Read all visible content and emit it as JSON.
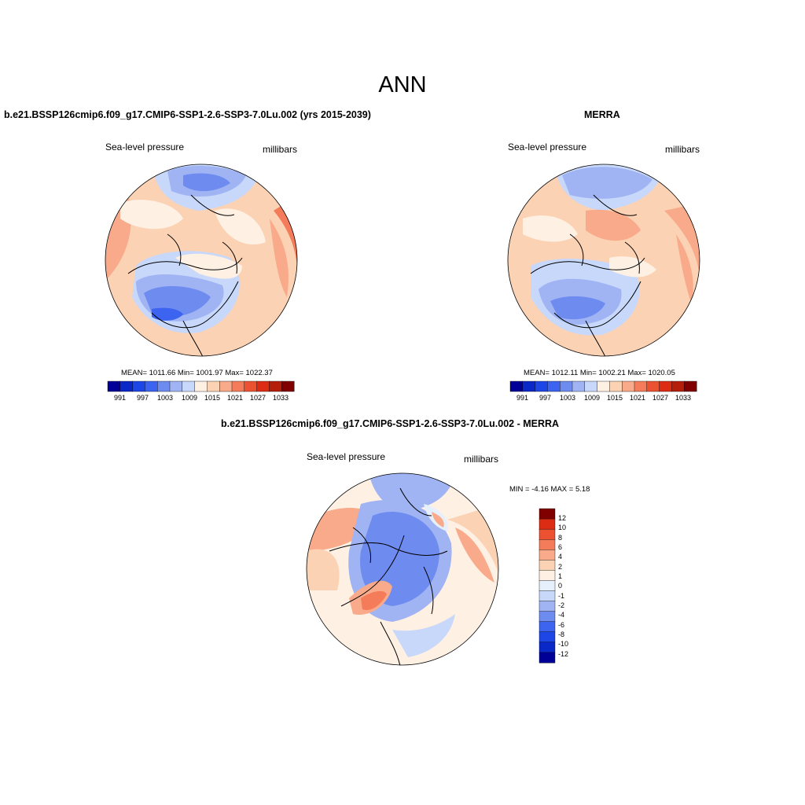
{
  "page_title": "ANN",
  "colors": {
    "abs_scale": [
      "#000096",
      "#0a28c8",
      "#1e46e6",
      "#3c64f0",
      "#6e8cf0",
      "#a0b4f4",
      "#c8d8fa",
      "#fff0e4",
      "#fcd2b4",
      "#f8aa8a",
      "#f47c5a",
      "#ec5232",
      "#dc2d14",
      "#b41e0a",
      "#800000"
    ],
    "diff_scale": [
      "#000096",
      "#0a28c8",
      "#1e46e6",
      "#3c64f0",
      "#6e8cf0",
      "#a0b4f4",
      "#c8d8fa",
      "#e6f0fc",
      "#fff0e4",
      "#fcd2b4",
      "#f8aa8a",
      "#f47c5a",
      "#ec5232",
      "#dc2d14",
      "#800000"
    ]
  },
  "panels": {
    "model": {
      "case_title": "b.e21.BSSP126cmip6.f09_g17.CMIP6-SSP1-2.6-SSP3-7.0Lu.002 (yrs 2015-2039)",
      "variable": "Sea-level pressure",
      "units": "millibars",
      "stats": "MEAN= 1011.66  Min= 1001.97  Max= 1022.37",
      "colorbar_ticks": [
        "991",
        "997",
        "1003",
        "1009",
        "1015",
        "1021",
        "1027",
        "1033"
      ]
    },
    "obs": {
      "case_title": "MERRA",
      "variable": "Sea-level pressure",
      "units": "millibars",
      "stats": "MEAN= 1012.11  Min= 1002.21  Max= 1020.05",
      "colorbar_ticks": [
        "991",
        "997",
        "1003",
        "1009",
        "1015",
        "1021",
        "1027",
        "1033"
      ]
    },
    "diff": {
      "case_title": "b.e21.BSSP126cmip6.f09_g17.CMIP6-SSP1-2.6-SSP3-7.0Lu.002 - MERRA",
      "variable": "Sea-level pressure",
      "units": "millibars",
      "stats": "MIN =  -4.16 MAX =   5.18",
      "colorbar_ticks": [
        "12",
        "10",
        "8",
        "6",
        "4",
        "2",
        "1",
        "0",
        "-1",
        "-2",
        "-4",
        "-6",
        "-8",
        "-10",
        "-12"
      ]
    }
  }
}
